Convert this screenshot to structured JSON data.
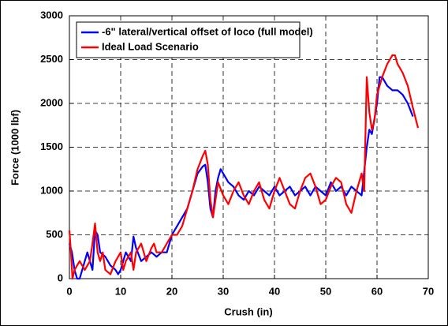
{
  "chart_data": {
    "type": "line",
    "xlabel": "Crush (in)",
    "ylabel": "Force (1000 lbf)",
    "xlim": [
      0,
      70
    ],
    "xticks": [
      0,
      10,
      20,
      30,
      40,
      50,
      60,
      70
    ],
    "ylim": [
      0,
      3000
    ],
    "yticks": [
      0,
      500,
      1000,
      1500,
      2000,
      2500,
      3000
    ],
    "grid": true,
    "legend": "upper left",
    "series": [
      {
        "name": "-6\" lateral/vertical offset of loco (full model)",
        "color": "#0000ff",
        "x": [
          0,
          0.5,
          1,
          1.5,
          2,
          3,
          3.5,
          4,
          4.5,
          5,
          5.5,
          6,
          7,
          8,
          9,
          9.5,
          10,
          10.5,
          11,
          12,
          12.5,
          13,
          14,
          15,
          16,
          17,
          18,
          19,
          20,
          21,
          22,
          23,
          24,
          25,
          26,
          26.5,
          27,
          27.5,
          28,
          28.5,
          29,
          29.5,
          30,
          31,
          32,
          33,
          34,
          35,
          36,
          37,
          38,
          39,
          40,
          41,
          42,
          43,
          44,
          45,
          46,
          47,
          48,
          49,
          50,
          51,
          52,
          53,
          54,
          55,
          56,
          57,
          58,
          58.5,
          59,
          60,
          60.5,
          61,
          62,
          63,
          64,
          65,
          66,
          67
        ],
        "values": [
          400,
          300,
          100,
          0,
          0,
          200,
          300,
          200,
          100,
          550,
          500,
          300,
          250,
          150,
          100,
          50,
          100,
          200,
          300,
          200,
          480,
          350,
          200,
          250,
          300,
          250,
          300,
          300,
          500,
          600,
          700,
          800,
          1000,
          1200,
          1280,
          1300,
          1100,
          800,
          700,
          1000,
          1150,
          1250,
          1200,
          1100,
          1050,
          950,
          900,
          1000,
          950,
          1050,
          1000,
          950,
          1050,
          950,
          1000,
          1050,
          950,
          1000,
          1050,
          950,
          1050,
          1000,
          950,
          1100,
          1000,
          1050,
          950,
          1050,
          1000,
          950,
          1500,
          1700,
          1650,
          2000,
          2300,
          2300,
          2200,
          2150,
          2150,
          2100,
          2000,
          1850
        ]
      },
      {
        "name": "Ideal Load Scenario",
        "color": "#ff0000",
        "x": [
          0,
          0.3,
          0.6,
          1,
          2,
          3,
          4,
          4.5,
          5,
          5.5,
          6,
          6.5,
          7,
          8,
          9,
          10,
          10.5,
          11,
          12,
          12.5,
          13,
          14,
          15,
          16,
          16.5,
          17,
          18,
          19,
          20,
          21,
          22,
          23,
          24,
          25,
          26,
          26.5,
          27,
          27.5,
          28,
          28.5,
          29,
          30,
          31,
          32,
          33,
          34,
          35,
          36,
          37,
          38,
          39,
          40,
          41,
          42,
          43,
          44,
          45,
          46,
          47,
          48,
          49,
          50,
          51,
          52,
          53,
          54,
          55,
          56,
          57,
          57.5,
          58,
          58.5,
          59,
          59.5,
          60,
          61,
          62,
          63,
          63.5,
          64,
          65,
          66,
          67,
          68
        ],
        "values": [
          550,
          300,
          0,
          100,
          200,
          100,
          200,
          400,
          630,
          300,
          200,
          300,
          100,
          50,
          200,
          300,
          100,
          200,
          300,
          100,
          300,
          400,
          200,
          350,
          400,
          300,
          300,
          400,
          500,
          500,
          600,
          800,
          1000,
          1250,
          1400,
          1460,
          1300,
          900,
          700,
          900,
          1100,
          950,
          850,
          1000,
          1100,
          950,
          850,
          1000,
          1100,
          900,
          800,
          1000,
          1150,
          1000,
          850,
          800,
          1000,
          1150,
          1200,
          1050,
          850,
          900,
          1050,
          1150,
          1100,
          850,
          750,
          1000,
          1200,
          1000,
          2300,
          1900,
          1700,
          1800,
          2100,
          2300,
          2450,
          2550,
          2550,
          2450,
          2350,
          2200,
          1950,
          1720
        ]
      }
    ]
  }
}
